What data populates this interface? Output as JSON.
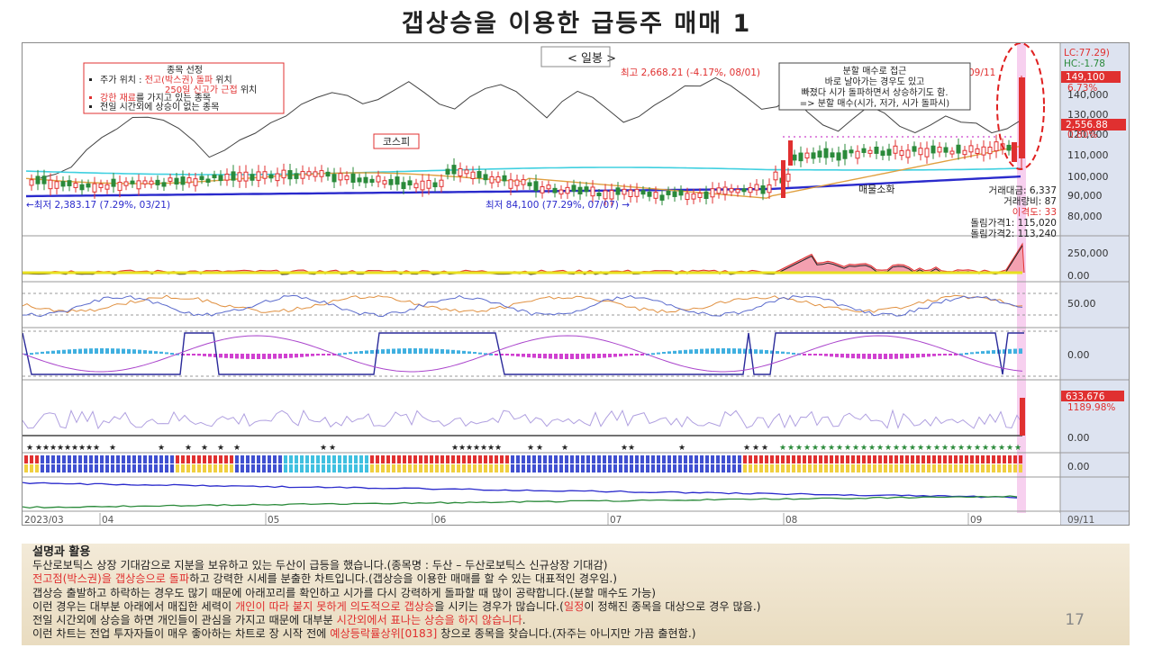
{
  "slide": {
    "title": "갭상승을 이용한 급등주 매매 1",
    "page_number": "17"
  },
  "chart": {
    "period_label": "< 일봉 >",
    "index_label": "코스피",
    "kospi_high": "최고 2,668.21 (-4.17%, 08/01)",
    "kospi_low": "←최저 2,383.17 (7.29%, 03/21)",
    "stock_low": "최저 84,100 (77.29%, 07/07) →",
    "last_date_marker": "09/11",
    "selection_box": {
      "title": "종목 선정",
      "line1_prefix": "주가 위치 : ",
      "line1_red": "전고(박스권) 돌파",
      "line1_suffix": " 위치",
      "line2_red": "250일 신고가 근접",
      "line2_suffix": " 위치",
      "line3_red": "강한 재료",
      "line3_suffix": "를 가지고 있는 종목",
      "line4": "전일 시간외에 상승이 없는 종목"
    },
    "split_box": {
      "line1": "분할 매수로 접근",
      "line2": "바로 날아가는 경우도 있고",
      "line3": "빠졌다 시가 돌파하면서 상승하기도 함.",
      "line4": "=> 분할 매수(시가, 저가, 시가 돌파시)"
    },
    "supply_note": "매물소화",
    "right_info": {
      "lc": "LC:77.29)",
      "hc": "HC:-1.78",
      "last_price": "149,100",
      "last_pct": "6.73%",
      "index_value": "2,556.88",
      "index_pct": "0.80%",
      "volume": "거래대금: 6,337",
      "turnover": "거래량비: 87",
      "disparity": "이격도: 33",
      "limit1": "돌림가격1: 115,020",
      "limit2": "돌림가격2: 113,240"
    },
    "price_ticks": [
      "140,000",
      "130,000",
      "120,000",
      "110,000",
      "100,000",
      "90,000",
      "80,000"
    ],
    "panel_ticks": {
      "p1": [
        "250,000",
        "0.00"
      ],
      "p2": [
        "50.00"
      ],
      "p3": [
        "0.00"
      ],
      "p4_value": "633,676",
      "p4_pct": "1189.98%",
      "p4": [
        "0.00"
      ],
      "p5": [
        "0.00"
      ]
    },
    "date_labels": [
      "2023/03",
      "04",
      "05",
      "06",
      "07",
      "08",
      "09"
    ],
    "axis_last": "09/11"
  },
  "explanation": {
    "heading": "설명과 활용",
    "line1": "두산로보틱스 상장 기대감으로 지분을 보유하고 있는 두산이 급등을 했습니다.(종목명 : 두산 – 두산로보틱스 신규상장 기대감)",
    "line2_red": "전고점(박스권)을 갭상승으로 돌파",
    "line2_rest": "하고 강력한 시세를 분출한 차트입니다.(갭상승을 이용한 매매를 할 수 있는 대표적인 경우임.)",
    "line3": "갭상승 출발하고 하락하는 경우도 많기 때문에 아래꼬리를 확인하고 시가를 다시 강력하게 돌파할 때 많이 공략합니다.(분할 매수도 가능)",
    "line4_a": "이런 경우는 대부분 아래에서 매집한 세력이 ",
    "line4_red1": "개인이 따라 붙지 못하게 의도적으로 갭상승",
    "line4_b": "을 시키는 경우가 많습니다.(",
    "line4_red2": "일정",
    "line4_c": "이 정해진 종목을 대상으로 경우 많음.)",
    "line5_a": "전일 시간외에 상승을 하면 개인들이 관심을 가지고 때문에 대부분 ",
    "line5_red": "시간외에서 표나는 상승을 하지 않습니다",
    "line5_b": ".",
    "line6_a": "이런 차트는 전업 투자자들이 매우 좋아하는 차트로 장 시작 전에 ",
    "line6_red": "예상등락률상위[0183]",
    "line6_b": " 창으로 종목을 찾습니다.(자주는 아니지만 가끔 출현함.)"
  },
  "colors": {
    "up": "#e03030",
    "down": "#2a8a3a",
    "ma_blue": "#2a2acc",
    "ma_cyan": "#40d0e0",
    "ma_orange": "#e0a040",
    "highlight": "#f6c8ec",
    "right_axis": "#dde3f0"
  }
}
